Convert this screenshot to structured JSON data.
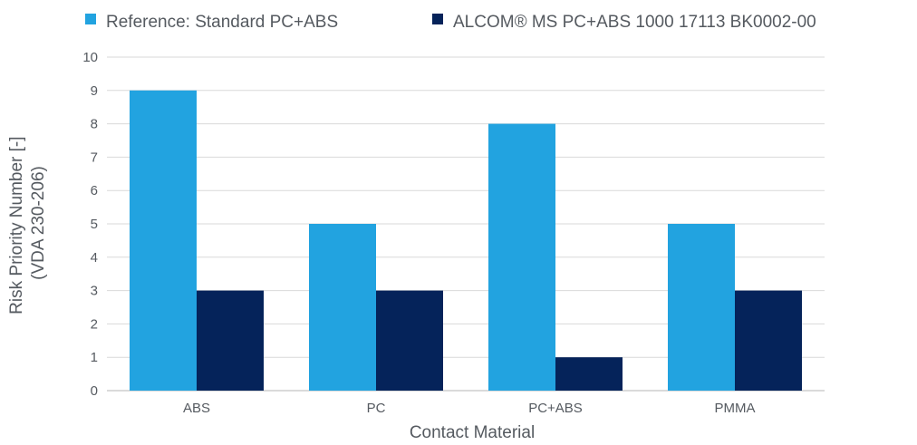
{
  "chart_data": {
    "type": "bar",
    "categories": [
      "ABS",
      "PC",
      "PC+ABS",
      "PMMA"
    ],
    "series": [
      {
        "name": "Reference: Standard PC+ABS",
        "values": [
          9,
          5,
          8,
          5
        ],
        "color": "#22a3e0"
      },
      {
        "name": "ALCOM® MS PC+ABS 1000 17113 BK0002-00",
        "values": [
          3,
          3,
          1,
          3
        ],
        "color": "#05235a"
      }
    ],
    "xlabel": "Contact Material",
    "ylabel": [
      "Risk Priority Number [-]",
      "(VDA 230-206)"
    ],
    "ylim": [
      0,
      10
    ],
    "yticks": [
      0,
      1,
      2,
      3,
      4,
      5,
      6,
      7,
      8,
      9,
      10
    ],
    "grid": true,
    "legend_position": "top"
  }
}
